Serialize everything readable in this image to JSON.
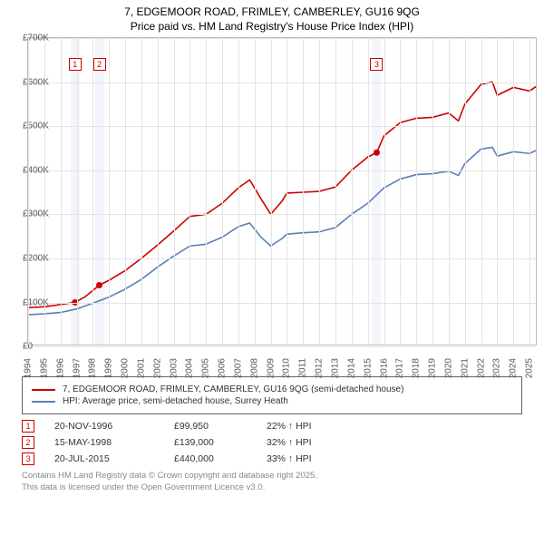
{
  "title": {
    "line1": "7, EDGEMOOR ROAD, FRIMLEY, CAMBERLEY, GU16 9QG",
    "line2": "Price paid vs. HM Land Registry's House Price Index (HPI)"
  },
  "chart": {
    "type": "line",
    "x_years": [
      1994,
      1995,
      1996,
      1997,
      1998,
      1999,
      2000,
      2001,
      2002,
      2003,
      2004,
      2005,
      2006,
      2007,
      2008,
      2009,
      2010,
      2011,
      2012,
      2013,
      2014,
      2015,
      2016,
      2017,
      2018,
      2019,
      2020,
      2021,
      2022,
      2023,
      2024,
      2025
    ],
    "xlim": [
      1994,
      2025.5
    ],
    "ylim": [
      0,
      700000
    ],
    "ytick_step": 100000,
    "ytick_labels": [
      "£0",
      "£100K",
      "£200K",
      "£300K",
      "£400K",
      "£500K",
      "£600K",
      "£700K"
    ],
    "grid_color": "#e4e4e4",
    "border_color": "#bbbbbb",
    "background_color": "#ffffff",
    "series": [
      {
        "name": "7, EDGEMOOR ROAD, FRIMLEY, CAMBERLEY, GU16 9QG (semi-detached house)",
        "color": "#cc0000",
        "line_width": 1.6,
        "points": [
          [
            1994,
            88000
          ],
          [
            1995,
            90000
          ],
          [
            1996,
            95000
          ],
          [
            1996.9,
            99950
          ],
          [
            1997.5,
            112000
          ],
          [
            1998.4,
            139000
          ],
          [
            1999,
            150000
          ],
          [
            2000,
            172000
          ],
          [
            2001,
            200000
          ],
          [
            2002,
            230000
          ],
          [
            2003,
            262000
          ],
          [
            2004,
            295000
          ],
          [
            2005,
            300000
          ],
          [
            2006,
            325000
          ],
          [
            2007,
            360000
          ],
          [
            2007.7,
            378000
          ],
          [
            2008.4,
            335000
          ],
          [
            2009,
            300000
          ],
          [
            2009.7,
            330000
          ],
          [
            2010,
            348000
          ],
          [
            2011,
            350000
          ],
          [
            2012,
            352000
          ],
          [
            2013,
            362000
          ],
          [
            2014,
            400000
          ],
          [
            2015,
            430000
          ],
          [
            2015.55,
            440000
          ],
          [
            2016,
            478000
          ],
          [
            2017,
            508000
          ],
          [
            2018,
            518000
          ],
          [
            2019,
            520000
          ],
          [
            2020,
            530000
          ],
          [
            2020.6,
            512000
          ],
          [
            2021,
            550000
          ],
          [
            2022,
            595000
          ],
          [
            2022.7,
            600000
          ],
          [
            2023,
            570000
          ],
          [
            2024,
            588000
          ],
          [
            2025,
            580000
          ],
          [
            2025.4,
            590000
          ]
        ]
      },
      {
        "name": "HPI: Average price, semi-detached house, Surrey Heath",
        "color": "#5b7fb5",
        "line_width": 1.6,
        "points": [
          [
            1994,
            72000
          ],
          [
            1995,
            74000
          ],
          [
            1996,
            77000
          ],
          [
            1997,
            85000
          ],
          [
            1998,
            98000
          ],
          [
            1999,
            112000
          ],
          [
            2000,
            130000
          ],
          [
            2001,
            152000
          ],
          [
            2002,
            180000
          ],
          [
            2003,
            205000
          ],
          [
            2004,
            228000
          ],
          [
            2005,
            232000
          ],
          [
            2006,
            248000
          ],
          [
            2007,
            272000
          ],
          [
            2007.7,
            280000
          ],
          [
            2008.4,
            248000
          ],
          [
            2009,
            228000
          ],
          [
            2009.7,
            245000
          ],
          [
            2010,
            255000
          ],
          [
            2011,
            258000
          ],
          [
            2012,
            260000
          ],
          [
            2013,
            270000
          ],
          [
            2014,
            300000
          ],
          [
            2015,
            325000
          ],
          [
            2016,
            360000
          ],
          [
            2017,
            380000
          ],
          [
            2018,
            390000
          ],
          [
            2019,
            392000
          ],
          [
            2020,
            398000
          ],
          [
            2020.6,
            388000
          ],
          [
            2021,
            415000
          ],
          [
            2022,
            448000
          ],
          [
            2022.7,
            452000
          ],
          [
            2023,
            432000
          ],
          [
            2024,
            442000
          ],
          [
            2025,
            438000
          ],
          [
            2025.4,
            445000
          ]
        ]
      }
    ],
    "sale_markers": [
      {
        "idx": "1",
        "x": 1996.9,
        "y": 99950,
        "box_y": 640000
      },
      {
        "idx": "2",
        "x": 1998.4,
        "y": 139000,
        "box_y": 640000
      },
      {
        "idx": "3",
        "x": 2015.55,
        "y": 440000,
        "box_y": 640000
      }
    ],
    "band_color": "#e8edf5",
    "marker_fill": "#cc0000",
    "marker_radius": 3.5,
    "label_fontsize": 10
  },
  "legend": {
    "items": [
      {
        "color": "#cc0000",
        "label": "7, EDGEMOOR ROAD, FRIMLEY, CAMBERLEY, GU16 9QG (semi-detached house)"
      },
      {
        "color": "#5b7fb5",
        "label": "HPI: Average price, semi-detached house, Surrey Heath"
      }
    ]
  },
  "sales": [
    {
      "idx": "1",
      "date": "20-NOV-1996",
      "price": "£99,950",
      "change": "22% ↑ HPI"
    },
    {
      "idx": "2",
      "date": "15-MAY-1998",
      "price": "£139,000",
      "change": "32% ↑ HPI"
    },
    {
      "idx": "3",
      "date": "20-JUL-2015",
      "price": "£440,000",
      "change": "33% ↑ HPI"
    }
  ],
  "footer": {
    "line1": "Contains HM Land Registry data © Crown copyright and database right 2025.",
    "line2": "This data is licensed under the Open Government Licence v3.0."
  }
}
